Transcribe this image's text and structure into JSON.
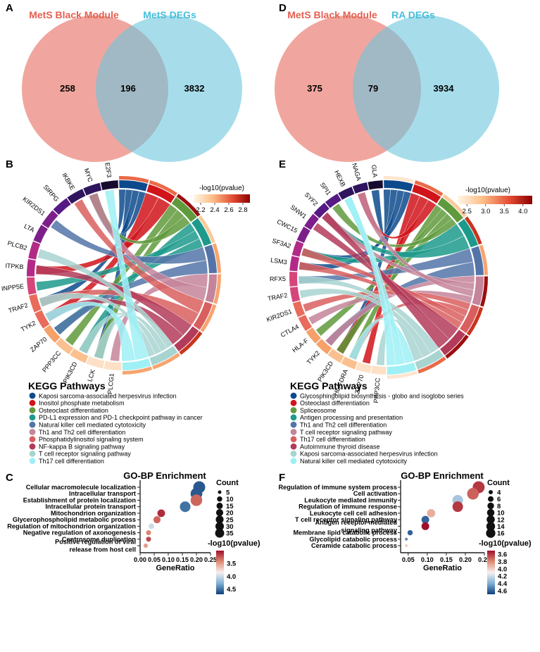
{
  "panels": {
    "A": {
      "letter": "A",
      "left_label": "MetS Black Module",
      "right_label": "MetS DEGs",
      "left_only": "258",
      "overlap": "196",
      "right_only": "3832"
    },
    "D": {
      "letter": "D",
      "left_label": "MetS Black Module",
      "right_label": "RA DEGs",
      "left_only": "375",
      "overlap": "79",
      "right_only": "3934"
    },
    "B": {
      "letter": "B",
      "genes": [
        "PLCG1",
        "LCK",
        "PIK3CD",
        "PPP3CC",
        "ZAP70",
        "TYK2",
        "TRAF2",
        "INPP5E",
        "ITPKB",
        "PLCB2",
        "LTA",
        "KIR2DS1",
        "SIRPG",
        "IKBKE",
        "MYC",
        "E2F3"
      ],
      "colorbar": {
        "title": "-log10(pvalue)",
        "ticks": [
          "2.2",
          "2.4",
          "2.6",
          "2.8"
        ]
      },
      "legend_title": "KEGG Pathways",
      "pathways": [
        {
          "label": "Kaposi sarcoma-associated herpesvirus infection",
          "color": "#0d4a8c"
        },
        {
          "label": "Inositol phosphate metabolism",
          "color": "#d0141a"
        },
        {
          "label": "Osteoclast differentiation",
          "color": "#5f9a3c"
        },
        {
          "label": "PD-L1 expression and PD-1 checkpoint pathway in cancer",
          "color": "#1d9a8c"
        },
        {
          "label": "Natural killer cell mediated cytotoxicity",
          "color": "#5474a8"
        },
        {
          "label": "Th1 and Th2 cell differentiation",
          "color": "#c4849a"
        },
        {
          "label": "Phosphatidylinositol signaling system",
          "color": "#d95f5f"
        },
        {
          "label": "NF-kappa B signaling pathway",
          "color": "#b33b5a"
        },
        {
          "label": "T cell receptor signaling pathway",
          "color": "#a8d4d0"
        },
        {
          "label": "Th17 cell differentiation",
          "color": "#9ef0f5"
        }
      ]
    },
    "E": {
      "letter": "E",
      "genes": [
        "PPP3CC",
        "ZAP70",
        "HLA-DRA",
        "PIK3CD",
        "TYK2",
        "HLA-F",
        "CTLA4",
        "KIR2DS1",
        "TRAF2",
        "RFX5",
        "LSM3",
        "SF3A2",
        "CWC15",
        "SNW1",
        "SYF2",
        "SPI1",
        "HEXB",
        "NAGA",
        "GLA"
      ],
      "colorbar": {
        "title": "-log10(pvalue)",
        "ticks": [
          "2.5",
          "3.0",
          "3.5",
          "4.0"
        ]
      },
      "legend_title": "KEGG Pathways",
      "pathways": [
        {
          "label": "Glycosphingolipid biosynthesis - globo and isoglobo series",
          "color": "#0d4a8c"
        },
        {
          "label": "Osteoclast differentiation",
          "color": "#d0141a"
        },
        {
          "label": "Spliceosome",
          "color": "#5f9a3c"
        },
        {
          "label": "Antigen processing and presentation",
          "color": "#1d9a8c"
        },
        {
          "label": "Th1 and Th2 cell differentiation",
          "color": "#5474a8"
        },
        {
          "label": "T cell receptor signaling pathway",
          "color": "#c4849a"
        },
        {
          "label": "Th17 cell differentiation",
          "color": "#d95f5f"
        },
        {
          "label": "Autoimmune thyroid disease",
          "color": "#b33b5a"
        },
        {
          "label": "Kaposi sarcoma-associated herpesvirus infection",
          "color": "#a8d4d0"
        },
        {
          "label": "Natural killer cell mediated cytotoxicity",
          "color": "#9ef0f5"
        }
      ]
    },
    "C": {
      "letter": "C"
    },
    "F": {
      "letter": "F"
    }
  },
  "chart_data": [
    {
      "panel": "C",
      "type": "scatter",
      "title": "GO-BP Enrichment",
      "xlabel": "GeneRatio",
      "ylabel": "",
      "xlim": [
        0.0,
        0.25
      ],
      "xticks": [
        "0.00",
        "0.05",
        "0.10",
        "0.15",
        "0.20",
        "0.25"
      ],
      "terms": [
        "Cellular macromolecule localization",
        "Intracellular transport",
        "Establishment of protein localization",
        "Intracellular protein transport",
        "Mitochondrion organization",
        "Glycerophospholipid metabolic process",
        "Regulation of mitochondrion organization",
        "Negative regulation of axonogenesis",
        "Centrosome duplication",
        "Positive regulation of viral release from host cell"
      ],
      "term_lines": [
        [
          "Cellular macromolecule localization"
        ],
        [
          "Intracellular transport"
        ],
        [
          "Establishment of protein localization"
        ],
        [
          "Intracellular protein transport"
        ],
        [
          "Mitochondrion organization"
        ],
        [
          "Glycerophospholipid metabolic process"
        ],
        [
          "Regulation of mitochondrion organization"
        ],
        [
          "Negative regulation of axonogenesis"
        ],
        [
          "Centrosome duplication"
        ],
        [
          "Positive regulation of viral",
          "release from host cell"
        ]
      ],
      "gene_ratio": [
        0.21,
        0.2,
        0.2,
        0.16,
        0.075,
        0.06,
        0.04,
        0.03,
        0.03,
        0.02
      ],
      "count": [
        40,
        38,
        37,
        30,
        14,
        12,
        7,
        6,
        6,
        5
      ],
      "pvalue_log10": [
        4.6,
        4.6,
        3.3,
        4.5,
        3.1,
        3.3,
        4.0,
        3.4,
        3.2,
        3.5
      ],
      "size_legend": {
        "title": "Count",
        "values": [
          5,
          10,
          15,
          20,
          25,
          30,
          35
        ]
      },
      "color_legend": {
        "title": "-log10(pvalue)",
        "ticks": [
          3.5,
          4.0,
          4.5
        ],
        "range": [
          3.0,
          4.7
        ]
      }
    },
    {
      "panel": "F",
      "type": "scatter",
      "title": "GO-BP Enrichment",
      "xlabel": "GeneRatio",
      "ylabel": "",
      "xlim": [
        0.03,
        0.25
      ],
      "xticks": [
        "0.05",
        "0.10",
        "0.15",
        "0.20",
        "0.25"
      ],
      "terms": [
        "Regulation of immune system process",
        "Cell activation",
        "Leukocyte mediated immunity",
        "Regulation of immune response",
        "Leukocyte cell cell adhesion",
        "T cell receptor signaling pathway",
        "Antigen receptor mediated signaling pathway",
        "Membrane lipid catabolic process",
        "Glycolipid catabolic process",
        "Ceramide catabolic process"
      ],
      "term_lines": [
        [
          "Regulation of immune system process"
        ],
        [
          "Cell activation"
        ],
        [
          "Leukocyte mediated immunity"
        ],
        [
          "Regulation of immune response"
        ],
        [
          "Leukocyte cell cell adhesion"
        ],
        [
          "T cell receptor signaling pathway"
        ],
        [
          "Antigen receptor mediated",
          "signaling pathway"
        ],
        [
          "Membrane lipid catabolic process"
        ],
        [
          "Glycolipid catabolic process"
        ],
        [
          "Ceramide catabolic process"
        ]
      ],
      "gene_ratio": [
        0.235,
        0.22,
        0.18,
        0.18,
        0.11,
        0.095,
        0.095,
        0.055,
        0.045,
        0.045
      ],
      "count": [
        17,
        16,
        13,
        13,
        8,
        7,
        7,
        4,
        3,
        3
      ],
      "pvalue_log10": [
        3.6,
        3.7,
        4.3,
        3.6,
        3.9,
        4.6,
        3.4,
        4.6,
        4.5,
        4.0
      ],
      "size_legend": {
        "title": "Count",
        "values": [
          4,
          6,
          8,
          10,
          12,
          14,
          16
        ]
      },
      "color_legend": {
        "title": "-log10(pvalue)",
        "ticks": [
          3.6,
          3.8,
          4.0,
          4.2,
          4.4,
          4.6
        ],
        "range": [
          3.5,
          4.7
        ]
      }
    }
  ]
}
